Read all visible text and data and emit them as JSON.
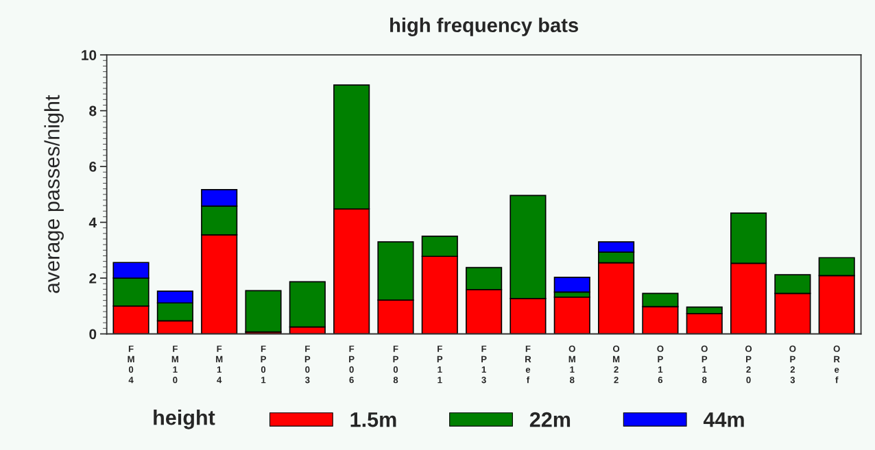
{
  "chart_data": {
    "type": "bar",
    "title": "high frequency bats",
    "ylabel": "average passes/night",
    "legend_title": "height",
    "categories": [
      "FM04",
      "FM10",
      "FM14",
      "FP01",
      "FP03",
      "FP06",
      "FP08",
      "FP11",
      "FP13",
      "FRef",
      "OM18",
      "OM22",
      "OP16",
      "OP18",
      "OP20",
      "OP23",
      "ORef"
    ],
    "stacked": true,
    "series": [
      {
        "name": "1.5m",
        "color": "#ff0000",
        "values": [
          1.0,
          0.47,
          3.55,
          0.07,
          0.25,
          4.48,
          1.21,
          2.78,
          1.59,
          1.27,
          1.32,
          2.55,
          0.98,
          0.73,
          2.53,
          1.45,
          2.09
        ]
      },
      {
        "name": "22m",
        "color": "#008000",
        "values": [
          1.0,
          0.64,
          1.03,
          1.48,
          1.62,
          4.44,
          2.09,
          0.72,
          0.79,
          3.69,
          0.18,
          0.38,
          0.47,
          0.23,
          1.8,
          0.67,
          0.64
        ]
      },
      {
        "name": "44m",
        "color": "#0000ff",
        "values": [
          0.56,
          0.42,
          0.59,
          null,
          null,
          null,
          null,
          null,
          null,
          null,
          0.53,
          0.37,
          null,
          null,
          null,
          null,
          null
        ]
      }
    ],
    "ylim": [
      0,
      10
    ],
    "yticks": [
      0,
      2,
      4,
      6,
      8,
      10
    ],
    "grid": false,
    "legend": "bottom"
  }
}
